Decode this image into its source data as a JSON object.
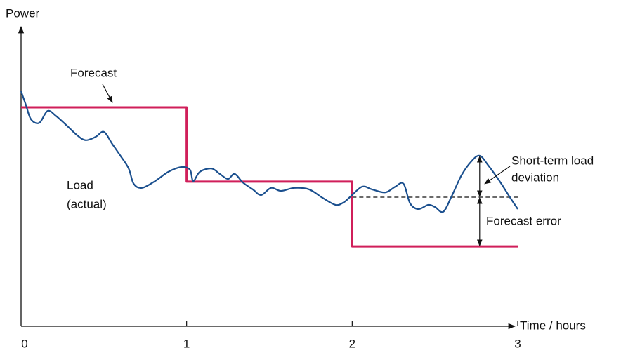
{
  "chart_data": {
    "type": "line",
    "ylabel": "Power",
    "xlabel": "Time / hours",
    "xlim": [
      0,
      3
    ],
    "ylim": [
      0,
      100
    ],
    "xticks": [
      0,
      1,
      2,
      3
    ],
    "series": [
      {
        "label": [
          "Forecast"
        ],
        "color": "#d01f5a",
        "step": true,
        "x": [
          0,
          1,
          1,
          2,
          2,
          3
        ],
        "values": [
          73.4,
          73.4,
          48.5,
          48.5,
          26.8,
          26.8
        ]
      },
      {
        "label": [
          "Load",
          "(actual)"
        ],
        "color": "#1a4f8e",
        "smooth": true,
        "x": [
          0,
          0.03,
          0.06,
          0.11,
          0.16,
          0.21,
          0.28,
          0.34,
          0.39,
          0.45,
          0.5,
          0.55,
          0.6,
          0.65,
          0.68,
          0.73,
          0.81,
          0.89,
          0.97,
          1.02,
          1.04,
          1.08,
          1.15,
          1.2,
          1.25,
          1.29,
          1.34,
          1.4,
          1.45,
          1.51,
          1.57,
          1.65,
          1.74,
          1.82,
          1.9,
          1.95,
          1.99,
          2.06,
          2.12,
          2.2,
          2.26,
          2.31,
          2.35,
          2.4,
          2.46,
          2.5,
          2.55,
          2.6,
          2.66,
          2.72,
          2.77,
          2.82,
          2.89,
          2.95,
          3.0
        ],
        "values": [
          78.8,
          74.1,
          69.4,
          68.2,
          72.2,
          70.6,
          67.1,
          64.0,
          62.4,
          63.5,
          65.2,
          61.2,
          57.2,
          52.9,
          47.8,
          46.4,
          48.7,
          51.8,
          53.4,
          52.5,
          48.7,
          51.8,
          52.9,
          51.1,
          49.4,
          51.1,
          48.2,
          45.9,
          44.0,
          46.4,
          45.4,
          46.4,
          45.9,
          43.1,
          40.7,
          41.6,
          43.5,
          46.8,
          45.9,
          44.9,
          46.8,
          47.8,
          41.2,
          39.3,
          40.7,
          40.0,
          38.4,
          43.5,
          50.6,
          55.3,
          57.2,
          54.1,
          48.7,
          43.5,
          39.3
        ]
      }
    ],
    "reference": {
      "x": [
        2,
        3
      ],
      "value": 43.3
    },
    "deviations": [
      {
        "label": [
          "Short-term load",
          "deviation"
        ],
        "x": 2.77,
        "from": 43.3,
        "to": 57.2
      },
      {
        "label": [
          "Forecast error"
        ],
        "x": 2.77,
        "from": 26.8,
        "to": 43.3
      }
    ]
  }
}
